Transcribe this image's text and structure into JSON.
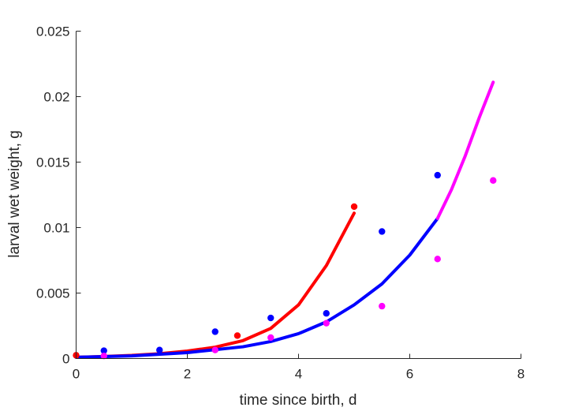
{
  "chart_data": {
    "type": "scatter",
    "title": "",
    "xlabel": "time since birth, d",
    "ylabel": "larval wet weight, g",
    "xlim": [
      0,
      8
    ],
    "ylim": [
      0,
      0.025
    ],
    "x_ticks": [
      0,
      2,
      4,
      6,
      8
    ],
    "y_ticks": [
      0,
      0.005,
      0.01,
      0.015,
      0.02,
      0.025
    ],
    "x_tick_labels": [
      "0",
      "2",
      "4",
      "6",
      "8"
    ],
    "y_tick_labels": [
      "0",
      "0.005",
      "0.01",
      "0.015",
      "0.02",
      "0.025"
    ],
    "grid": false,
    "legend": "none",
    "series": [
      {
        "kind": "points",
        "color": "#ff0000",
        "x": [
          0,
          2.9,
          5.0
        ],
        "y": [
          0.00025,
          0.00175,
          0.0116
        ]
      },
      {
        "kind": "points",
        "color": "#0000ff",
        "x": [
          0.5,
          1.5,
          2.5,
          3.5,
          4.5,
          5.5,
          6.5
        ],
        "y": [
          0.0006,
          0.00065,
          0.00205,
          0.0031,
          0.00345,
          0.0097,
          0.014
        ]
      },
      {
        "kind": "points",
        "color": "#ff00ff",
        "x": [
          0.5,
          2.5,
          3.5,
          4.5,
          5.5,
          6.5,
          7.5
        ],
        "y": [
          0.0002,
          0.00065,
          0.0016,
          0.0027,
          0.004,
          0.0076,
          0.0136
        ]
      },
      {
        "kind": "curve",
        "color": "#ff0000",
        "x": [
          0,
          0.5,
          1.0,
          1.5,
          2.0,
          2.5,
          3.0,
          3.5,
          4.0,
          4.5,
          5.0
        ],
        "y": [
          0.0001,
          0.00016,
          0.00024,
          0.00037,
          0.00057,
          0.00087,
          0.00137,
          0.0023,
          0.0041,
          0.0071,
          0.0111
        ]
      },
      {
        "kind": "curve",
        "color": "#0000ff",
        "x": [
          0,
          1.0,
          2.0,
          3.0,
          3.5,
          4.0,
          4.5,
          5.0,
          5.5,
          6.0,
          6.5
        ],
        "y": [
          0.0001,
          0.0002,
          0.00045,
          0.0009,
          0.0013,
          0.0019,
          0.0028,
          0.0041,
          0.0057,
          0.0079,
          0.0107
        ]
      },
      {
        "kind": "curve",
        "color": "#ff00ff",
        "x": [
          6.5,
          6.75,
          7.0,
          7.25,
          7.5
        ],
        "y": [
          0.0107,
          0.0129,
          0.0155,
          0.0184,
          0.0211
        ]
      }
    ]
  }
}
